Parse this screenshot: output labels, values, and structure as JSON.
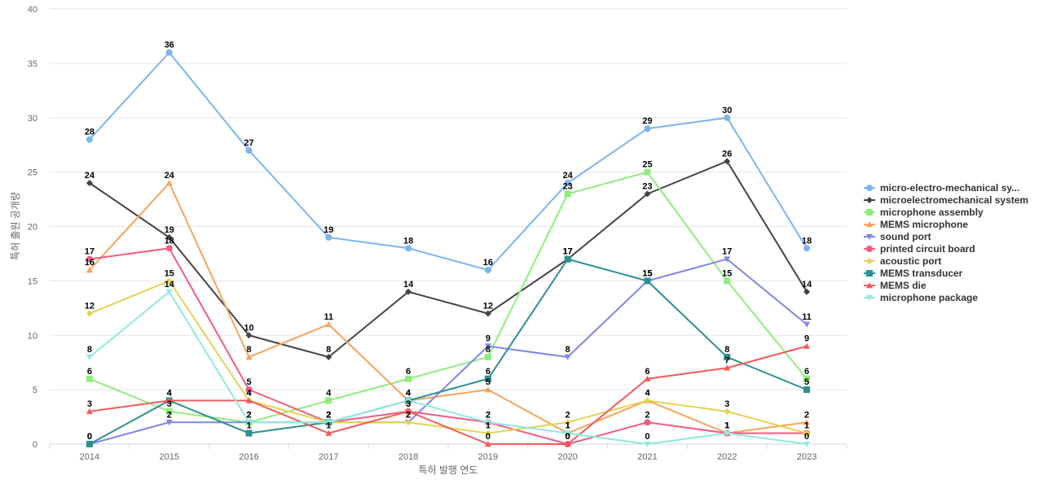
{
  "chart_data": {
    "type": "line",
    "title": "",
    "xlabel": "특허 발행 연도",
    "ylabel": "특허 출원 공개량",
    "x": [
      "2014",
      "2015",
      "2016",
      "2017",
      "2018",
      "2019",
      "2020",
      "2021",
      "2022",
      "2023"
    ],
    "ylim": [
      0,
      40
    ],
    "yticks": [
      "0",
      "5",
      "10",
      "15",
      "20",
      "25",
      "30",
      "35",
      "40"
    ],
    "grid": true,
    "legend_position": "right",
    "series": [
      {
        "name": "micro-electro-mechanical sy...",
        "color": "#7cb5ec",
        "marker": "circle",
        "values": [
          28,
          36,
          27,
          19,
          18,
          16,
          24,
          29,
          30,
          18
        ]
      },
      {
        "name": "microelectromechanical system",
        "color": "#434348",
        "marker": "diamond",
        "values": [
          24,
          19,
          10,
          8,
          14,
          12,
          17,
          23,
          26,
          14
        ]
      },
      {
        "name": "microphone assembly",
        "color": "#90ed7d",
        "marker": "square",
        "values": [
          6,
          3,
          2,
          4,
          6,
          8,
          23,
          25,
          15,
          6
        ]
      },
      {
        "name": "MEMS microphone",
        "color": "#f7a35c",
        "marker": "triangle",
        "values": [
          16,
          24,
          8,
          11,
          4,
          5,
          1,
          4,
          1,
          2
        ]
      },
      {
        "name": "sound port",
        "color": "#8085e9",
        "marker": "triangle-down",
        "values": [
          0,
          2,
          2,
          2,
          2,
          9,
          8,
          15,
          17,
          11
        ]
      },
      {
        "name": "printed circuit board",
        "color": "#f15c80",
        "marker": "circle",
        "values": [
          17,
          18,
          5,
          2,
          3,
          2,
          0,
          2,
          1,
          1
        ]
      },
      {
        "name": "acoustic port",
        "color": "#e4d354",
        "marker": "diamond",
        "values": [
          12,
          15,
          4,
          2,
          2,
          1,
          2,
          4,
          3,
          1
        ]
      },
      {
        "name": "MEMS transducer",
        "color": "#2b908f",
        "marker": "square",
        "values": [
          0,
          4,
          1,
          2,
          4,
          6,
          17,
          15,
          8,
          5
        ]
      },
      {
        "name": "MEMS die",
        "color": "#f45b5b",
        "marker": "triangle",
        "values": [
          3,
          4,
          4,
          1,
          3,
          0,
          0,
          6,
          7,
          9
        ]
      },
      {
        "name": "microphone package",
        "color": "#91e8e1",
        "marker": "triangle-down",
        "values": [
          8,
          14,
          2,
          2,
          4,
          2,
          1,
          0,
          1,
          0
        ]
      }
    ]
  }
}
